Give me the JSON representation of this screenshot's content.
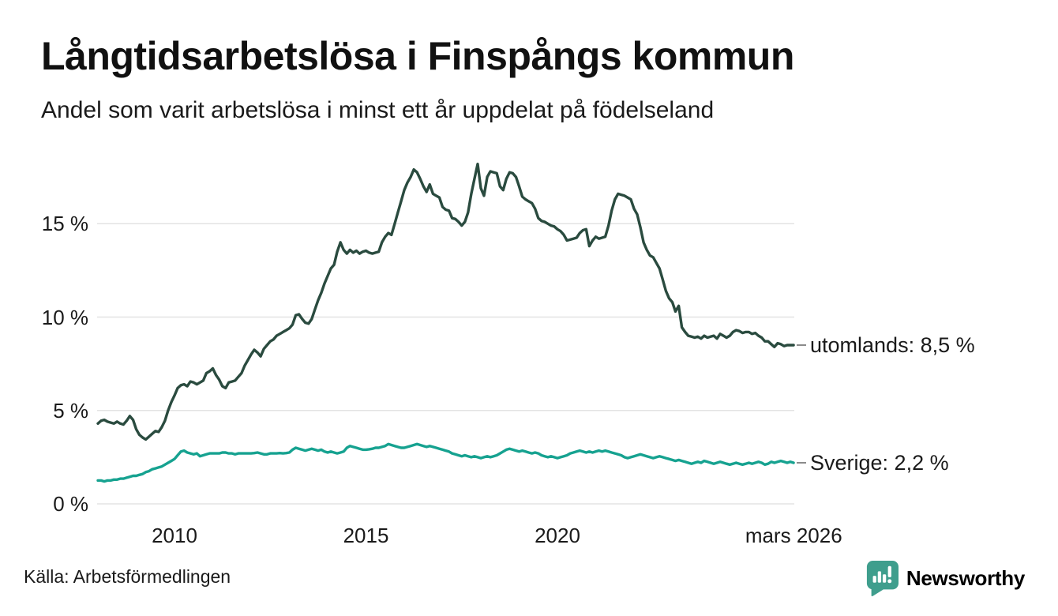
{
  "footer": {
    "brand": {
      "name": "Newsworthy",
      "color": "#3f9e8d",
      "icon": "bar-chart-speech-bubble-icon"
    }
  },
  "colors": {
    "background": "#ffffff",
    "grid": "#e3e3e3",
    "text": "#1a1a1a",
    "connector_dash": "#8a8a8a",
    "series_utomlands": "#2a4b3f",
    "series_sverige": "#16a290",
    "brand_teal": "#3f9e8d"
  },
  "chart_data": {
    "type": "line",
    "title": "Långtidsarbetslösa i Finspångs kommun",
    "subtitle": "Andel som varit arbetslösa i minst ett år uppdelat på födelseland",
    "source": "Källa: Arbetsförmedlingen",
    "x_unit": "decimal_year_monthly",
    "x_start": 2008.0,
    "points_per_year": 12,
    "x_end": "2026-03",
    "xlim": [
      2008.0,
      2026.25
    ],
    "ylim": [
      0,
      18.5
    ],
    "grid": "horizontal",
    "legend_position": "right-end-labels",
    "yticks": [
      {
        "value": 0,
        "label": "0 %"
      },
      {
        "value": 5,
        "label": "5 %"
      },
      {
        "value": 10,
        "label": "10 %"
      },
      {
        "value": 15,
        "label": "15 %"
      }
    ],
    "xticks": [
      {
        "value": 2010,
        "label": "2010"
      },
      {
        "value": 2015,
        "label": "2015"
      },
      {
        "value": 2020,
        "label": "2020"
      },
      {
        "value": 2026.17,
        "label": "mars 2026"
      }
    ],
    "series": [
      {
        "name": "utomlands",
        "color": "#2a4b3f",
        "end_label": "utomlands: 8,5 %",
        "end_value": 8.5,
        "values": [
          4.3,
          4.45,
          4.5,
          4.4,
          4.35,
          4.3,
          4.4,
          4.3,
          4.25,
          4.45,
          4.7,
          4.5,
          4.0,
          3.7,
          3.55,
          3.45,
          3.6,
          3.75,
          3.9,
          3.85,
          4.1,
          4.45,
          5.0,
          5.45,
          5.8,
          6.2,
          6.35,
          6.4,
          6.3,
          6.55,
          6.5,
          6.4,
          6.5,
          6.6,
          7.0,
          7.1,
          7.25,
          6.9,
          6.65,
          6.3,
          6.2,
          6.5,
          6.55,
          6.6,
          6.8,
          7.0,
          7.4,
          7.7,
          8.0,
          8.25,
          8.1,
          7.9,
          8.3,
          8.5,
          8.7,
          8.8,
          9.0,
          9.1,
          9.2,
          9.3,
          9.4,
          9.6,
          10.1,
          10.15,
          9.9,
          9.7,
          9.65,
          9.9,
          10.4,
          10.9,
          11.3,
          11.8,
          12.2,
          12.6,
          12.8,
          13.5,
          14.0,
          13.6,
          13.4,
          13.6,
          13.45,
          13.55,
          13.4,
          13.5,
          13.55,
          13.45,
          13.4,
          13.45,
          13.5,
          14.0,
          14.3,
          14.5,
          14.4,
          15.0,
          15.6,
          16.2,
          16.8,
          17.2,
          17.5,
          17.9,
          17.75,
          17.4,
          17.0,
          16.7,
          17.1,
          16.6,
          16.5,
          16.4,
          15.9,
          15.75,
          15.7,
          15.3,
          15.25,
          15.1,
          14.9,
          15.1,
          15.6,
          16.6,
          17.4,
          18.2,
          16.9,
          16.5,
          17.5,
          17.8,
          17.75,
          17.7,
          17.0,
          16.8,
          17.4,
          17.75,
          17.7,
          17.5,
          17.0,
          16.45,
          16.3,
          16.2,
          16.1,
          15.8,
          15.3,
          15.15,
          15.1,
          15.0,
          14.9,
          14.85,
          14.7,
          14.6,
          14.4,
          14.1,
          14.15,
          14.2,
          14.25,
          14.5,
          14.65,
          14.7,
          13.8,
          14.1,
          14.3,
          14.2,
          14.25,
          14.3,
          14.9,
          15.7,
          16.3,
          16.6,
          16.55,
          16.5,
          16.4,
          16.3,
          15.8,
          15.5,
          14.8,
          14.0,
          13.6,
          13.3,
          13.2,
          12.9,
          12.6,
          12.0,
          11.4,
          11.0,
          10.8,
          10.3,
          10.6,
          9.45,
          9.2,
          9.0,
          8.95,
          8.9,
          8.95,
          8.85,
          9.0,
          8.9,
          8.95,
          9.0,
          8.85,
          9.1,
          9.0,
          8.9,
          9.0,
          9.2,
          9.3,
          9.25,
          9.15,
          9.2,
          9.2,
          9.1,
          9.15,
          9.0,
          8.9,
          8.7,
          8.7,
          8.55,
          8.4,
          8.6,
          8.55,
          8.45,
          8.5,
          8.5,
          8.5
        ]
      },
      {
        "name": "Sverige",
        "color": "#16a290",
        "end_label": "Sverige: 2,2 %",
        "end_value": 2.2,
        "values": [
          1.25,
          1.25,
          1.2,
          1.25,
          1.25,
          1.3,
          1.3,
          1.35,
          1.35,
          1.4,
          1.45,
          1.5,
          1.5,
          1.55,
          1.6,
          1.7,
          1.75,
          1.85,
          1.9,
          1.95,
          2.0,
          2.1,
          2.2,
          2.3,
          2.4,
          2.6,
          2.8,
          2.85,
          2.75,
          2.7,
          2.65,
          2.7,
          2.55,
          2.6,
          2.65,
          2.7,
          2.7,
          2.7,
          2.7,
          2.75,
          2.75,
          2.7,
          2.7,
          2.65,
          2.7,
          2.7,
          2.7,
          2.7,
          2.7,
          2.72,
          2.75,
          2.7,
          2.65,
          2.65,
          2.7,
          2.7,
          2.7,
          2.72,
          2.7,
          2.72,
          2.75,
          2.9,
          3.0,
          2.95,
          2.9,
          2.85,
          2.9,
          2.95,
          2.9,
          2.85,
          2.9,
          2.8,
          2.75,
          2.8,
          2.75,
          2.7,
          2.75,
          2.8,
          3.0,
          3.1,
          3.05,
          3.0,
          2.95,
          2.9,
          2.9,
          2.92,
          2.95,
          3.0,
          3.0,
          3.05,
          3.1,
          3.2,
          3.15,
          3.1,
          3.05,
          3.0,
          3.0,
          3.05,
          3.1,
          3.15,
          3.2,
          3.15,
          3.1,
          3.05,
          3.1,
          3.05,
          3.0,
          2.95,
          2.9,
          2.85,
          2.8,
          2.7,
          2.65,
          2.6,
          2.55,
          2.6,
          2.55,
          2.5,
          2.55,
          2.5,
          2.45,
          2.5,
          2.55,
          2.5,
          2.55,
          2.6,
          2.7,
          2.8,
          2.9,
          2.95,
          2.9,
          2.85,
          2.8,
          2.85,
          2.8,
          2.75,
          2.7,
          2.75,
          2.7,
          2.6,
          2.55,
          2.5,
          2.55,
          2.5,
          2.45,
          2.5,
          2.55,
          2.6,
          2.7,
          2.75,
          2.8,
          2.85,
          2.8,
          2.75,
          2.8,
          2.75,
          2.8,
          2.85,
          2.8,
          2.85,
          2.8,
          2.75,
          2.7,
          2.65,
          2.6,
          2.5,
          2.45,
          2.5,
          2.55,
          2.6,
          2.65,
          2.6,
          2.55,
          2.5,
          2.45,
          2.5,
          2.55,
          2.5,
          2.45,
          2.4,
          2.35,
          2.3,
          2.35,
          2.3,
          2.25,
          2.2,
          2.15,
          2.2,
          2.25,
          2.2,
          2.3,
          2.25,
          2.2,
          2.15,
          2.2,
          2.25,
          2.2,
          2.15,
          2.1,
          2.15,
          2.2,
          2.15,
          2.1,
          2.15,
          2.2,
          2.15,
          2.2,
          2.25,
          2.2,
          2.1,
          2.15,
          2.25,
          2.2,
          2.25,
          2.3,
          2.25,
          2.2,
          2.25,
          2.2
        ]
      }
    ]
  }
}
